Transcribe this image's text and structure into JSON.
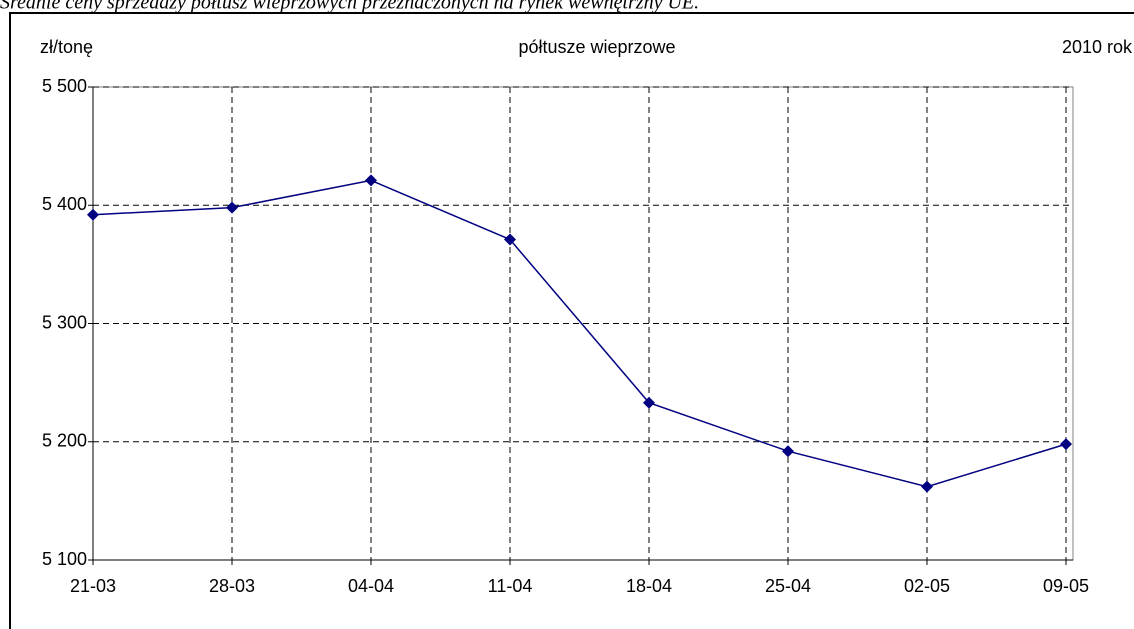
{
  "chart_data": {
    "type": "line",
    "caption": "Średnie ceny sprzedaży półtusz wieprzowych przeznaczonych na rynek wewnętrzny UE.",
    "title": "półtusze wieprzowe",
    "y_label": "zł/tonę",
    "annotation": "2010 rok",
    "categories": [
      "21-03",
      "28-03",
      "04-04",
      "11-04",
      "18-04",
      "25-04",
      "02-05",
      "09-05"
    ],
    "series": [
      {
        "name": "półtusze wieprzowe",
        "color": "#000080",
        "values": [
          5392,
          5398,
          5421,
          5371,
          5233,
          5192,
          5162,
          5198
        ]
      }
    ],
    "ylim": [
      5100,
      5500
    ],
    "yticks": [
      {
        "value": 5100,
        "label": "5 100"
      },
      {
        "value": 5200,
        "label": "5 200"
      },
      {
        "value": 5300,
        "label": "5 300"
      },
      {
        "value": 5400,
        "label": "5 400"
      },
      {
        "value": 5500,
        "label": "5 500"
      }
    ],
    "grid": true
  }
}
